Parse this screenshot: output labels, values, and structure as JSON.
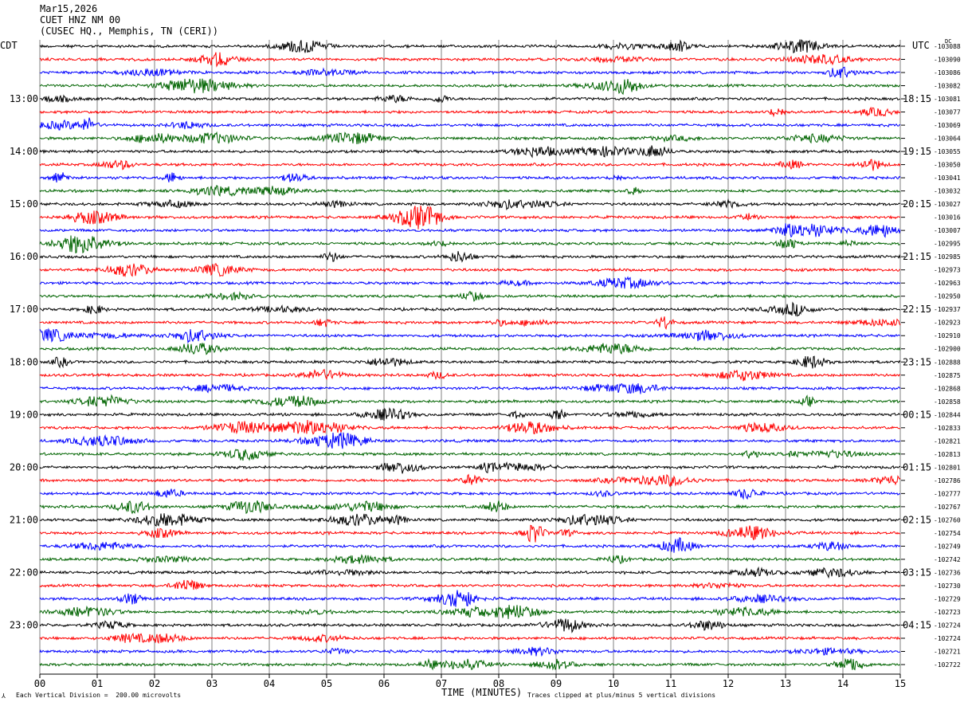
{
  "header": {
    "date": "Mar15,2026",
    "station": "CUET HNZ NM 00",
    "location": "(CUSEC HQ., Memphis, TN (CERI))"
  },
  "axes": {
    "left_timezone": "CDT",
    "right_timezone": "UTC",
    "dc_label": "DC",
    "xlabel": "TIME (MINUTES)",
    "scale_note": "Each Vertical Division =  200.00 microvolts",
    "clip_note": "Traces clipped at plus/minus 5 vertical divisions",
    "corner_mark": "⅄"
  },
  "colors": {
    "trace_cycle": [
      "#000000",
      "#ff0000",
      "#0000ff",
      "#006400"
    ],
    "grid": "#808080",
    "gridline_major": "#000000"
  },
  "chart_data": {
    "type": "line",
    "title": "Mar15,2026 CUET HNZ NM 00 (CUSEC HQ., Memphis, TN (CERI))",
    "xlabel": "TIME (MINUTES)",
    "ylabel": "",
    "xlim": [
      0,
      15
    ],
    "x_ticks": [
      "00",
      "01",
      "02",
      "03",
      "04",
      "05",
      "06",
      "07",
      "08",
      "09",
      "10",
      "11",
      "12",
      "13",
      "14",
      "15"
    ],
    "left_hour_labels": [
      {
        "row": 4,
        "label": "13:00"
      },
      {
        "row": 8,
        "label": "14:00"
      },
      {
        "row": 12,
        "label": "15:00"
      },
      {
        "row": 16,
        "label": "16:00"
      },
      {
        "row": 20,
        "label": "17:00"
      },
      {
        "row": 24,
        "label": "18:00"
      },
      {
        "row": 28,
        "label": "19:00"
      },
      {
        "row": 32,
        "label": "20:00"
      },
      {
        "row": 36,
        "label": "21:00"
      },
      {
        "row": 40,
        "label": "22:00"
      },
      {
        "row": 44,
        "label": "23:00"
      }
    ],
    "right_hour_labels": [
      {
        "row": 4,
        "label": "18:15"
      },
      {
        "row": 8,
        "label": "19:15"
      },
      {
        "row": 12,
        "label": "20:15"
      },
      {
        "row": 16,
        "label": "21:15"
      },
      {
        "row": 20,
        "label": "22:15"
      },
      {
        "row": 24,
        "label": "23:15"
      },
      {
        "row": 28,
        "label": "00:15"
      },
      {
        "row": 32,
        "label": "01:15"
      },
      {
        "row": 36,
        "label": "02:15"
      },
      {
        "row": 40,
        "label": "03:15"
      },
      {
        "row": 44,
        "label": "04:15"
      }
    ],
    "trace_offsets": [
      "-103088",
      "-103090",
      "-103086",
      "-103082",
      "-103081",
      "-103077",
      "-103069",
      "-103064",
      "-103055",
      "-103050",
      "-103041",
      "-103032",
      "-103027",
      "-103016",
      "-103007",
      "-102995",
      "-102985",
      "-102973",
      "-102963",
      "-102950",
      "-102937",
      "-102923",
      "-102910",
      "-102900",
      "-102888",
      "-102875",
      "-102868",
      "-102858",
      "-102844",
      "-102833",
      "-102821",
      "-102813",
      "-102801",
      "-102786",
      "-102777",
      "-102767",
      "-102760",
      "-102754",
      "-102749",
      "-102742",
      "-102736",
      "-102730",
      "-102729",
      "-102723",
      "-102724",
      "-102724",
      "-102721",
      "-102722"
    ]
  }
}
